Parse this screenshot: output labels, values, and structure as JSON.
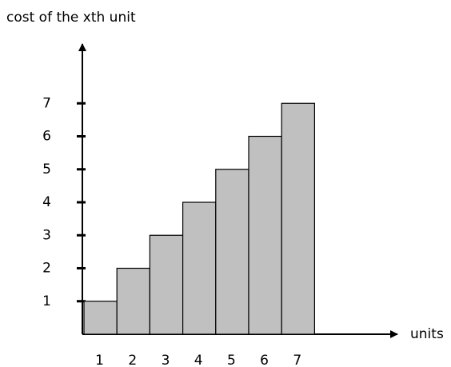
{
  "chart_data": {
    "type": "bar",
    "y_label": "cost of the xth unit",
    "x_label": "units",
    "categories": [
      "1",
      "2",
      "3",
      "4",
      "5",
      "6",
      "7"
    ],
    "values": [
      1,
      2,
      3,
      4,
      5,
      6,
      7
    ],
    "color": "#c0c0c0",
    "ylim": [
      0,
      8.8
    ],
    "yticks": [
      1,
      2,
      3,
      4,
      5,
      6,
      7
    ]
  }
}
